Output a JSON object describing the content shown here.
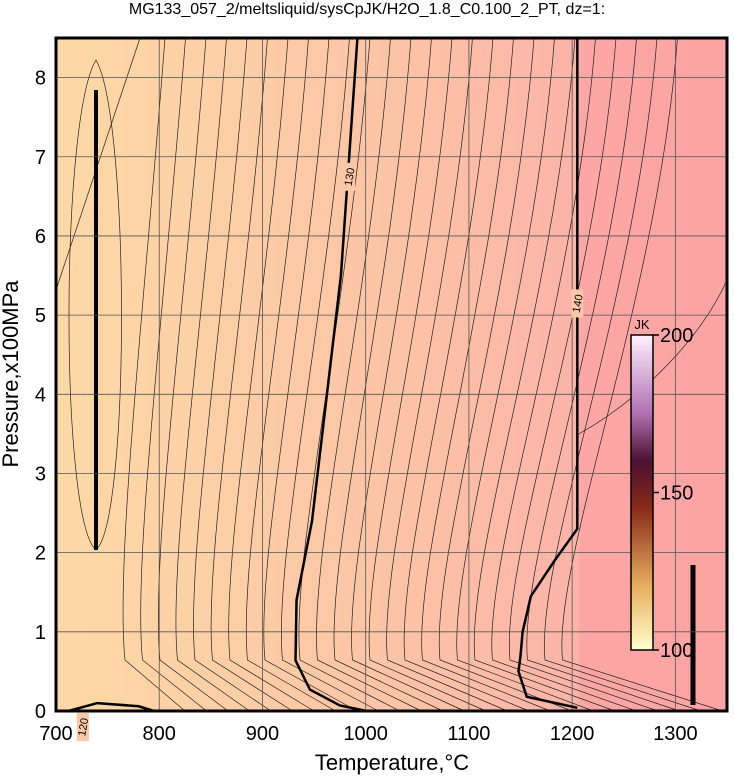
{
  "chart_data": {
    "type": "contour",
    "title": "MG133_057_2/meltsliquid/sysCpJK/H2O_1.8_C0.100_2_PT, dz=1:",
    "xlabel": "Temperature,°C",
    "ylabel": "Pressure,x100MPa",
    "xlim": [
      700,
      1350
    ],
    "ylim": [
      0,
      8.5
    ],
    "xticks": [
      700,
      800,
      900,
      1000,
      1100,
      1200,
      1300
    ],
    "yticks": [
      0,
      1,
      2,
      3,
      4,
      5,
      6,
      7,
      8
    ],
    "grid": true,
    "contours": [
      {
        "level": 120,
        "x": [
          712,
          740,
          780,
          795
        ],
        "y": [
          0,
          0.1,
          0.06,
          0
        ]
      },
      {
        "level": 130,
        "x": [
          992,
          976,
          948,
          933,
          932,
          946,
          975,
          1001
        ],
        "y": [
          8.5,
          5.5,
          2.4,
          1.4,
          0.64,
          0.27,
          0.07,
          0
        ]
      },
      {
        "level": 140,
        "x": [
          1205,
          1205,
          1183,
          1160,
          1152,
          1150,
          1148,
          1156,
          1205
        ],
        "y": [
          8.5,
          2.3,
          1.9,
          1.45,
          1.0,
          0.7,
          0.5,
          0.18,
          0.04
        ]
      }
    ],
    "colorbar": {
      "label": "JK",
      "lim": [
        100,
        200
      ],
      "ticks": [
        100,
        150,
        200
      ]
    }
  }
}
